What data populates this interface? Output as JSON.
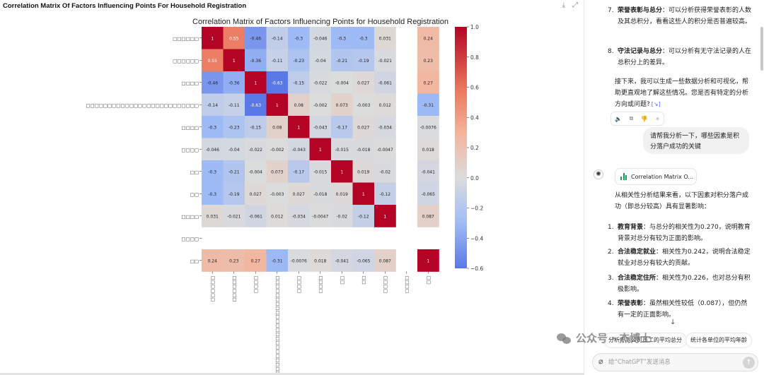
{
  "panel": {
    "title": "Correlation Matrix Of Factors Influencing Points For Household Registration",
    "download_icon": "⤓",
    "expand_icon": "⤢"
  },
  "chart_data": {
    "type": "heatmap",
    "title": "Correlation Matrix of Factors Influencing Points for Household Registration",
    "row_labels": [
      "□□□□□□",
      "□□□□□□",
      "□□□□",
      "□□□□□□□□□□□□□□□□□□□□□□□□□□",
      "□□□□",
      "□□□□",
      "□□",
      "□□",
      "□□□□",
      "□□□□",
      "□□"
    ],
    "col_labels": [
      "□□□□□□",
      "□□□□□□",
      "□□□□",
      "□□□□□□□□□□□□□□□□□□□□□□□□□□",
      "□□□□",
      "□□□□",
      "□□",
      "□□",
      "□□□□",
      "□□□□",
      "□□"
    ],
    "matrix": [
      [
        1,
        0.55,
        -0.46,
        -0.14,
        -0.3,
        -0.046,
        -0.3,
        -0.3,
        0.031,
        null,
        0.24
      ],
      [
        0.55,
        1,
        -0.36,
        -0.11,
        -0.23,
        -0.04,
        -0.21,
        -0.19,
        -0.021,
        null,
        0.23
      ],
      [
        -0.46,
        -0.36,
        1,
        -0.63,
        -0.15,
        -0.022,
        -0.004,
        0.027,
        -0.061,
        null,
        0.27
      ],
      [
        -0.14,
        -0.11,
        -0.63,
        1,
        0.08,
        -0.002,
        0.073,
        -0.003,
        0.012,
        null,
        -0.31
      ],
      [
        -0.3,
        -0.23,
        -0.15,
        0.08,
        1,
        -0.043,
        -0.17,
        0.027,
        -0.034,
        null,
        -0.0076
      ],
      [
        -0.046,
        -0.04,
        -0.022,
        -0.002,
        -0.043,
        1,
        -0.015,
        -0.018,
        -0.0047,
        null,
        0.018
      ],
      [
        -0.3,
        -0.21,
        -0.004,
        0.073,
        -0.17,
        -0.015,
        1,
        0.019,
        -0.02,
        null,
        -0.041
      ],
      [
        -0.3,
        -0.19,
        0.027,
        -0.003,
        0.027,
        -0.018,
        0.019,
        1,
        -0.12,
        null,
        -0.065
      ],
      [
        0.031,
        -0.021,
        -0.061,
        0.012,
        -0.034,
        -0.0047,
        -0.02,
        -0.12,
        1,
        null,
        0.087
      ],
      [
        null,
        null,
        null,
        null,
        null,
        null,
        null,
        null,
        null,
        null,
        null
      ],
      [
        0.24,
        0.23,
        0.27,
        -0.31,
        -0.0076,
        0.018,
        -0.041,
        -0.065,
        0.087,
        null,
        1
      ]
    ],
    "colorbar": {
      "min": -0.6,
      "max": 1.0,
      "ticks": [
        "1.0",
        "0.8",
        "0.6",
        "0.4",
        "0.2",
        "0.0",
        "−0.2",
        "−0.4",
        "−0.6"
      ]
    },
    "colormap": "coolwarm",
    "colors": {
      "negative": "#5a78e6",
      "neutral": "#dcdcdc",
      "positive": "#b40426"
    }
  },
  "chat": {
    "list_top": [
      {
        "num": "7.",
        "title": "荣誉表彰与总分",
        "text": "：可以分析获得荣誉表彰的人数及其总积分，看看这些人的积分是否普遍较高。"
      },
      {
        "num": "8.",
        "title": "守法记录与总分",
        "text": "：可以分析有无守法记录的人在总积分上的差异。"
      }
    ],
    "followup": "接下来，我可以生成一些数据分析和可视化，帮助更直观地了解这些情况。您是否有特定的分析方向或问题?",
    "followup_chip": "[↘]",
    "actions": [
      "🔈",
      "⧉",
      "👎",
      "✧"
    ],
    "user_message": "请帮我分析一下，哪些因素是积分落户成功的关键",
    "assistant_avatar": "✺",
    "chart_chip_label": "Correlation Matrix O...",
    "intro": "从相关性分析结果来看，以下因素对积分落户成功（即总分较高）具有显著影响：",
    "list_bottom": [
      {
        "num": "1.",
        "title": "教育背景",
        "text": "：与总分的相关性为0.270，说明教育背景对总分有较为正面的影响。"
      },
      {
        "num": "2.",
        "title": "合法稳定就业",
        "text": "：相关性为0.242，说明合法稳定就业对总分有较大的贡献。"
      },
      {
        "num": "3.",
        "title": "合法稳定住所",
        "text": "：相关性为0.226，也对总分有积极影响。"
      },
      {
        "num": "4.",
        "title": "荣誉表彰",
        "text": "：虽然相关性较低（0.087），但仍然有一定的正面影响。"
      }
    ],
    "down_arrow": "↓",
    "suggestions": [
      "分析不同公司员工的平均总分",
      "统计各单位的平均年龄"
    ],
    "composer_placeholder": "给“ChatGPT”发送消息",
    "attach_icon": "⌀",
    "send_icon": "↑",
    "watermark_text": "公众号 · 杰博士"
  }
}
